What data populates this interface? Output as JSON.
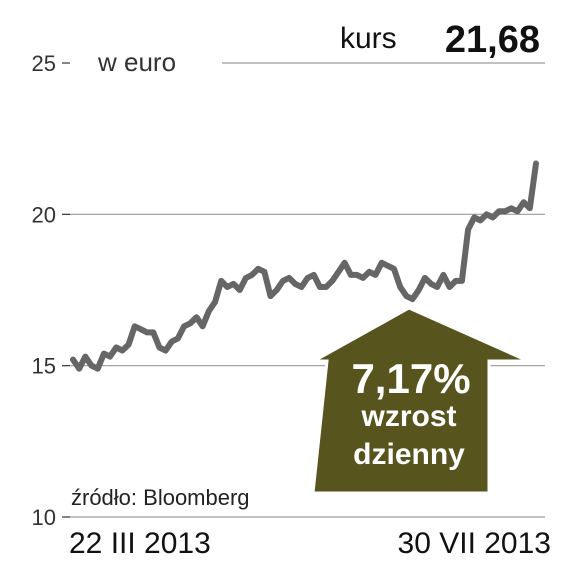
{
  "header": {
    "unit_label": "w euro",
    "price_label": "kurs",
    "price_value": "21,68"
  },
  "badge": {
    "percent": "7,17%",
    "line1": "wzrost",
    "line2": "dzienny",
    "color": "#57541e"
  },
  "source": "źródło: Bloomberg",
  "chart_data": {
    "type": "line",
    "ylim": [
      10,
      25
    ],
    "yticks": [
      "25",
      "20",
      "15",
      "10"
    ],
    "x_start_label": "22 III 2013",
    "x_end_label": "30 VII 2013",
    "grid": true,
    "series": [
      {
        "line_color": "#666666",
        "values": [
          15.2,
          14.9,
          15.3,
          15.0,
          14.9,
          15.4,
          15.3,
          15.6,
          15.5,
          15.7,
          16.3,
          16.2,
          16.1,
          16.1,
          15.6,
          15.5,
          15.8,
          15.9,
          16.3,
          16.4,
          16.6,
          16.3,
          16.8,
          17.1,
          17.8,
          17.6,
          17.7,
          17.5,
          17.9,
          18.0,
          18.2,
          18.1,
          17.3,
          17.5,
          17.8,
          17.9,
          17.7,
          17.6,
          17.9,
          18.0,
          17.6,
          17.6,
          17.8,
          18.1,
          18.4,
          18.0,
          18.0,
          17.9,
          18.1,
          18.0,
          18.4,
          18.3,
          18.2,
          17.6,
          17.3,
          17.2,
          17.5,
          17.9,
          17.7,
          17.6,
          18.0,
          17.6,
          17.8,
          17.8,
          19.5,
          19.9,
          19.8,
          20.0,
          19.9,
          20.1,
          20.1,
          20.2,
          20.1,
          20.4,
          20.2,
          21.68
        ]
      }
    ]
  }
}
